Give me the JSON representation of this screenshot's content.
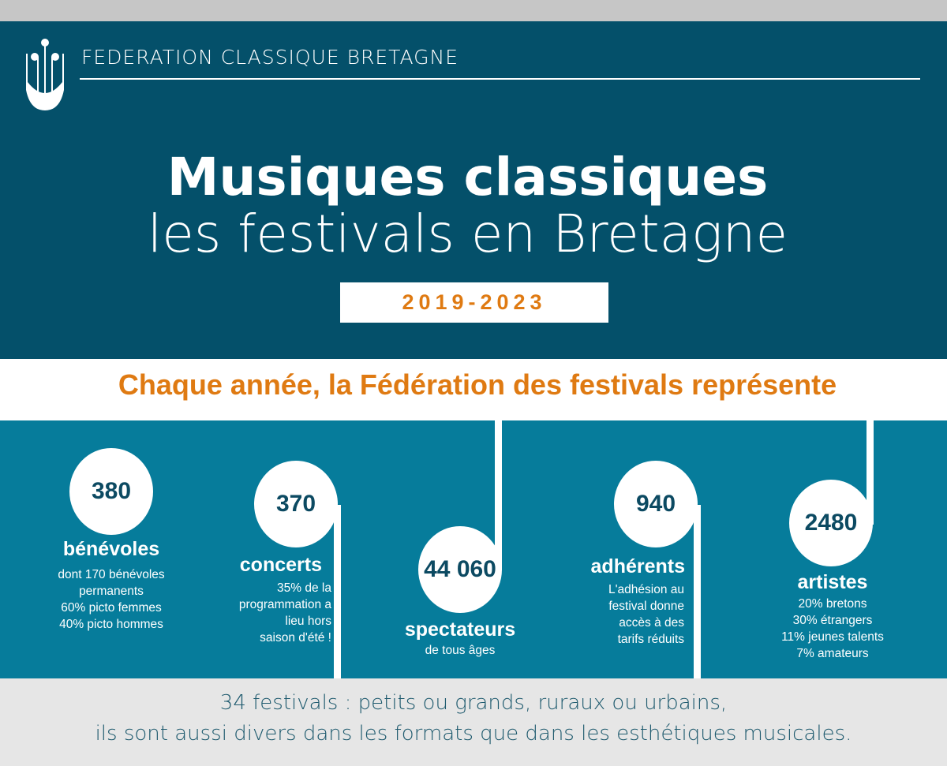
{
  "header": {
    "org_name": "FEDERATION CLASSIQUE BRETAGNE",
    "title_line1": "Musiques classiques",
    "title_line2": "les festivals en Bretagne",
    "years": "2019-2023"
  },
  "subtitle": "Chaque année, la Fédération des festivals représente",
  "stats": [
    {
      "value": "380",
      "label": "bénévoles",
      "lines": [
        "dont 170 bénévoles",
        "permanents",
        "60% picto femmes",
        "40% picto hommes"
      ]
    },
    {
      "value": "370",
      "label": "concerts",
      "lines": [
        "35% de la",
        "programmation a",
        "lieu hors",
        "saison d'été !"
      ]
    },
    {
      "value": "44 060",
      "label": "spectateurs",
      "lines": [
        "de tous âges"
      ]
    },
    {
      "value": "940",
      "label": "adhérents",
      "lines": [
        "L'adhésion au",
        "festival donne",
        "accès à des",
        "tarifs réduits"
      ]
    },
    {
      "value": "2480",
      "label": "artistes",
      "lines": [
        "20% bretons",
        "30% étrangers",
        "11% jeunes talents",
        "7% amateurs"
      ]
    }
  ],
  "footer": {
    "line1": "34 festivals : petits ou grands, ruraux ou urbains,",
    "line2": "ils sont aussi divers dans les formats que dans les esthétiques musicales."
  },
  "colors": {
    "header_bg": "#04506a",
    "stats_bg": "#067c9b",
    "accent": "#df7a12",
    "footer_bg": "#e6e6e6"
  },
  "icons": {
    "logo": "music-note-boat-logo"
  }
}
